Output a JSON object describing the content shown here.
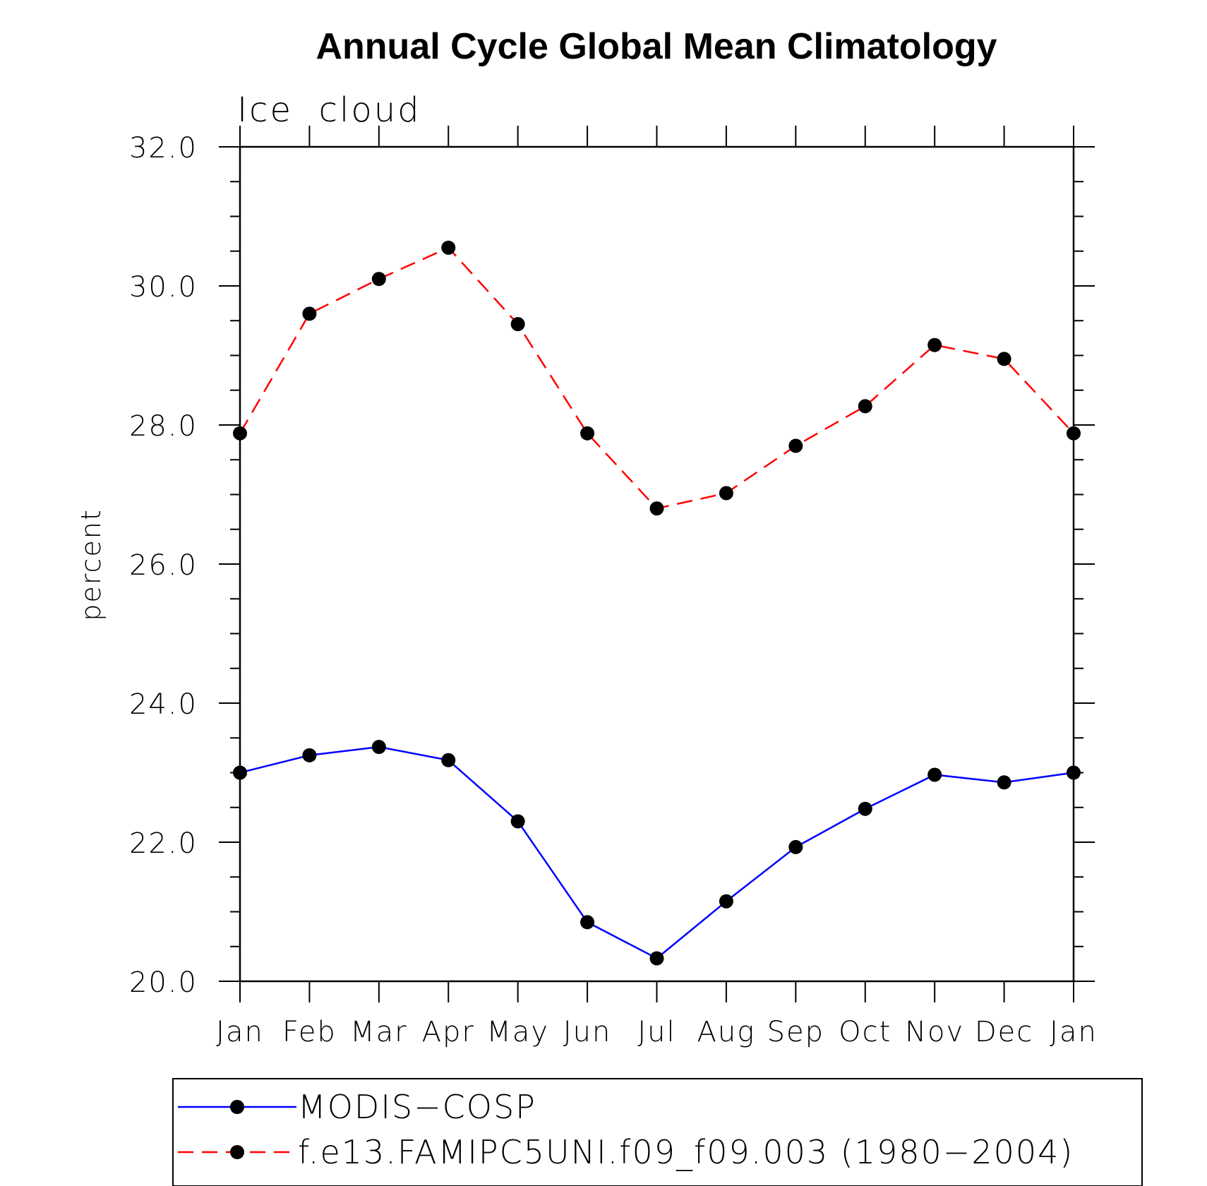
{
  "chart_data": {
    "type": "line",
    "title": "Annual Cycle Global Mean Climatology",
    "subtitle": "Ice  cloud",
    "xlabel": "",
    "ylabel": "percent",
    "categories": [
      "Jan",
      "Feb",
      "Mar",
      "Apr",
      "May",
      "Jun",
      "Jul",
      "Aug",
      "Sep",
      "Oct",
      "Nov",
      "Dec",
      "Jan"
    ],
    "ylim": [
      20.0,
      32.0
    ],
    "yticks": [
      "20.0",
      "22.0",
      "24.0",
      "26.0",
      "28.0",
      "30.0",
      "32.0"
    ],
    "grid": false,
    "legend_position": "bottom",
    "series": [
      {
        "name": "MODIS−COSP",
        "color": "#0000ff",
        "line_style": "solid",
        "marker": "filled-circle",
        "values": [
          23.0,
          23.25,
          23.37,
          23.18,
          22.3,
          20.85,
          20.33,
          21.15,
          21.93,
          22.48,
          22.97,
          22.86,
          23.0
        ]
      },
      {
        "name": "f.e13.FAMIPC5UNI.f09_f09.003 (1980−2004)",
        "color": "#ff0000",
        "line_style": "dashed",
        "marker": "filled-circle",
        "values": [
          27.88,
          29.6,
          30.1,
          30.55,
          29.45,
          27.88,
          26.8,
          27.02,
          27.7,
          28.27,
          29.15,
          28.95,
          27.88
        ]
      }
    ]
  }
}
